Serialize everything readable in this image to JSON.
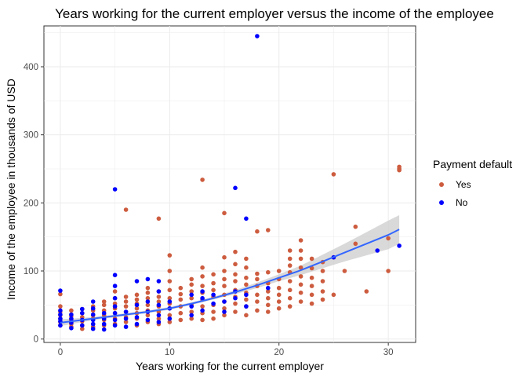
{
  "chart_data": {
    "type": "scatter",
    "title": "Years working for the current employer versus the income of the employee",
    "xlabel": "Years working for the current employer",
    "ylabel": "Income of the employee in thousands of USD",
    "xlim": [
      -1.5,
      32.5
    ],
    "ylim": [
      -5,
      460
    ],
    "x_ticks": [
      0,
      10,
      20,
      30
    ],
    "y_ticks": [
      0,
      100,
      200,
      300,
      400
    ],
    "grid": true,
    "legend": {
      "title": "Payment default",
      "placement": "right",
      "entries": [
        {
          "name": "Yes",
          "color": "#cd5c3f"
        },
        {
          "name": "No",
          "color": "#0000ff"
        }
      ]
    },
    "series": [
      {
        "name": "Yes",
        "color": "#cd5c3f",
        "points": [
          [
            0,
            25
          ],
          [
            0,
            30
          ],
          [
            0,
            35
          ],
          [
            0,
            40
          ],
          [
            0,
            48
          ],
          [
            0,
            20
          ],
          [
            0,
            66
          ],
          [
            1,
            22
          ],
          [
            1,
            28
          ],
          [
            1,
            34
          ],
          [
            1,
            42
          ],
          [
            1,
            18
          ],
          [
            2,
            20
          ],
          [
            2,
            26
          ],
          [
            2,
            32
          ],
          [
            2,
            38
          ],
          [
            2,
            44
          ],
          [
            2,
            15
          ],
          [
            3,
            22
          ],
          [
            3,
            30
          ],
          [
            3,
            35
          ],
          [
            3,
            42
          ],
          [
            3,
            48
          ],
          [
            3,
            18
          ],
          [
            4,
            20
          ],
          [
            4,
            28
          ],
          [
            4,
            35
          ],
          [
            4,
            42
          ],
          [
            4,
            50
          ],
          [
            4,
            55
          ],
          [
            5,
            22
          ],
          [
            5,
            30
          ],
          [
            5,
            38
          ],
          [
            5,
            45
          ],
          [
            5,
            52
          ],
          [
            5,
            60
          ],
          [
            5,
            70
          ],
          [
            6,
            25
          ],
          [
            6,
            32
          ],
          [
            6,
            40
          ],
          [
            6,
            48
          ],
          [
            6,
            55
          ],
          [
            6,
            62
          ],
          [
            6,
            190
          ],
          [
            7,
            20
          ],
          [
            7,
            30
          ],
          [
            7,
            38
          ],
          [
            7,
            45
          ],
          [
            7,
            52
          ],
          [
            7,
            58
          ],
          [
            7,
            65
          ],
          [
            8,
            25
          ],
          [
            8,
            35
          ],
          [
            8,
            42
          ],
          [
            8,
            50
          ],
          [
            8,
            60
          ],
          [
            8,
            68
          ],
          [
            8,
            75
          ],
          [
            9,
            22
          ],
          [
            9,
            30
          ],
          [
            9,
            40
          ],
          [
            9,
            48
          ],
          [
            9,
            55
          ],
          [
            9,
            62
          ],
          [
            9,
            70
          ],
          [
            9,
            177
          ],
          [
            10,
            25
          ],
          [
            10,
            35
          ],
          [
            10,
            45
          ],
          [
            10,
            52
          ],
          [
            10,
            60
          ],
          [
            10,
            72
          ],
          [
            10,
            85
          ],
          [
            10,
            100
          ],
          [
            10,
            123
          ],
          [
            11,
            28
          ],
          [
            11,
            38
          ],
          [
            11,
            48
          ],
          [
            11,
            58
          ],
          [
            11,
            66
          ],
          [
            11,
            75
          ],
          [
            12,
            30
          ],
          [
            12,
            40
          ],
          [
            12,
            50
          ],
          [
            12,
            60
          ],
          [
            12,
            70
          ],
          [
            12,
            80
          ],
          [
            12,
            88
          ],
          [
            13,
            28
          ],
          [
            13,
            38
          ],
          [
            13,
            48
          ],
          [
            13,
            58
          ],
          [
            13,
            68
          ],
          [
            13,
            78
          ],
          [
            13,
            92
          ],
          [
            13,
            105
          ],
          [
            13,
            234
          ],
          [
            14,
            30
          ],
          [
            14,
            40
          ],
          [
            14,
            50
          ],
          [
            14,
            62
          ],
          [
            14,
            72
          ],
          [
            14,
            82
          ],
          [
            14,
            95
          ],
          [
            15,
            35
          ],
          [
            15,
            45
          ],
          [
            15,
            55
          ],
          [
            15,
            65
          ],
          [
            15,
            78
          ],
          [
            15,
            88
          ],
          [
            15,
            100
          ],
          [
            15,
            120
          ],
          [
            15,
            185
          ],
          [
            16,
            40
          ],
          [
            16,
            52
          ],
          [
            16,
            62
          ],
          [
            16,
            72
          ],
          [
            16,
            85
          ],
          [
            16,
            95
          ],
          [
            16,
            110
          ],
          [
            16,
            128
          ],
          [
            17,
            35
          ],
          [
            17,
            48
          ],
          [
            17,
            58
          ],
          [
            17,
            68
          ],
          [
            17,
            80
          ],
          [
            17,
            90
          ],
          [
            17,
            105
          ],
          [
            17,
            118
          ],
          [
            18,
            42
          ],
          [
            18,
            55
          ],
          [
            18,
            65
          ],
          [
            18,
            78
          ],
          [
            18,
            88
          ],
          [
            18,
            96
          ],
          [
            18,
            158
          ],
          [
            19,
            40
          ],
          [
            19,
            50
          ],
          [
            19,
            60
          ],
          [
            19,
            70
          ],
          [
            19,
            82
          ],
          [
            19,
            98
          ],
          [
            19,
            160
          ],
          [
            20,
            45
          ],
          [
            20,
            55
          ],
          [
            20,
            65
          ],
          [
            20,
            75
          ],
          [
            20,
            88
          ],
          [
            20,
            100
          ],
          [
            21,
            48
          ],
          [
            21,
            60
          ],
          [
            21,
            72
          ],
          [
            21,
            85
          ],
          [
            21,
            98
          ],
          [
            21,
            108
          ],
          [
            21,
            118
          ],
          [
            21,
            130
          ],
          [
            22,
            55
          ],
          [
            22,
            68
          ],
          [
            22,
            80
          ],
          [
            22,
            92
          ],
          [
            22,
            105
          ],
          [
            22,
            118
          ],
          [
            22,
            130
          ],
          [
            22,
            145
          ],
          [
            23,
            52
          ],
          [
            23,
            65
          ],
          [
            23,
            78
          ],
          [
            23,
            90
          ],
          [
            23,
            104
          ],
          [
            23,
            118
          ],
          [
            24,
            58
          ],
          [
            24,
            70
          ],
          [
            24,
            85
          ],
          [
            24,
            100
          ],
          [
            24,
            113
          ],
          [
            25,
            65
          ],
          [
            25,
            120
          ],
          [
            25,
            242
          ],
          [
            26,
            100
          ],
          [
            27,
            140
          ],
          [
            27,
            165
          ],
          [
            28,
            70
          ],
          [
            30,
            100
          ],
          [
            30,
            148
          ],
          [
            31,
            248
          ],
          [
            31,
            250
          ],
          [
            31,
            253
          ]
        ]
      },
      {
        "name": "No",
        "color": "#0000ff",
        "points": [
          [
            0,
            20
          ],
          [
            0,
            26
          ],
          [
            0,
            30
          ],
          [
            0,
            36
          ],
          [
            0,
            42
          ],
          [
            0,
            71
          ],
          [
            1,
            16
          ],
          [
            1,
            24
          ],
          [
            1,
            30
          ],
          [
            1,
            36
          ],
          [
            2,
            20
          ],
          [
            2,
            28
          ],
          [
            2,
            38
          ],
          [
            2,
            44
          ],
          [
            3,
            15
          ],
          [
            3,
            22
          ],
          [
            3,
            28
          ],
          [
            3,
            36
          ],
          [
            3,
            45
          ],
          [
            3,
            55
          ],
          [
            4,
            14
          ],
          [
            4,
            22
          ],
          [
            4,
            30
          ],
          [
            4,
            38
          ],
          [
            5,
            20
          ],
          [
            5,
            28
          ],
          [
            5,
            38
          ],
          [
            5,
            48
          ],
          [
            5,
            60
          ],
          [
            5,
            78
          ],
          [
            5,
            94
          ],
          [
            5,
            220
          ],
          [
            6,
            18
          ],
          [
            6,
            30
          ],
          [
            6,
            40
          ],
          [
            7,
            22
          ],
          [
            7,
            32
          ],
          [
            7,
            50
          ],
          [
            7,
            85
          ],
          [
            8,
            28
          ],
          [
            8,
            40
          ],
          [
            8,
            55
          ],
          [
            8,
            88
          ],
          [
            9,
            25
          ],
          [
            9,
            35
          ],
          [
            9,
            50
          ],
          [
            9,
            70
          ],
          [
            9,
            85
          ],
          [
            10,
            30
          ],
          [
            10,
            45
          ],
          [
            10,
            55
          ],
          [
            12,
            35
          ],
          [
            12,
            48
          ],
          [
            12,
            65
          ],
          [
            13,
            42
          ],
          [
            13,
            60
          ],
          [
            13,
            70
          ],
          [
            14,
            52
          ],
          [
            14,
            65
          ],
          [
            15,
            40
          ],
          [
            15,
            55
          ],
          [
            16,
            60
          ],
          [
            16,
            70
          ],
          [
            16,
            222
          ],
          [
            17,
            48
          ],
          [
            17,
            65
          ],
          [
            17,
            177
          ],
          [
            18,
            445
          ],
          [
            19,
            75
          ],
          [
            25,
            120
          ],
          [
            29,
            130
          ],
          [
            31,
            137
          ]
        ]
      }
    ],
    "smooth": {
      "color": "#3366ff",
      "band_color": "#cccccc",
      "x": [
        0,
        2,
        4,
        6,
        8,
        10,
        12,
        14,
        16,
        18,
        20,
        22,
        24,
        26,
        28,
        30,
        31
      ],
      "y": [
        24,
        28,
        32,
        36,
        40,
        45,
        52,
        60,
        69,
        79,
        90,
        101,
        114,
        127,
        140,
        153,
        161
      ],
      "upper": [
        29,
        31,
        34,
        38,
        42,
        47,
        54,
        62,
        72,
        83,
        95,
        108,
        124,
        140,
        157,
        174,
        182
      ],
      "lower": [
        19,
        25,
        30,
        34,
        38,
        43,
        50,
        58,
        66,
        75,
        85,
        94,
        104,
        114,
        123,
        132,
        140
      ]
    }
  }
}
